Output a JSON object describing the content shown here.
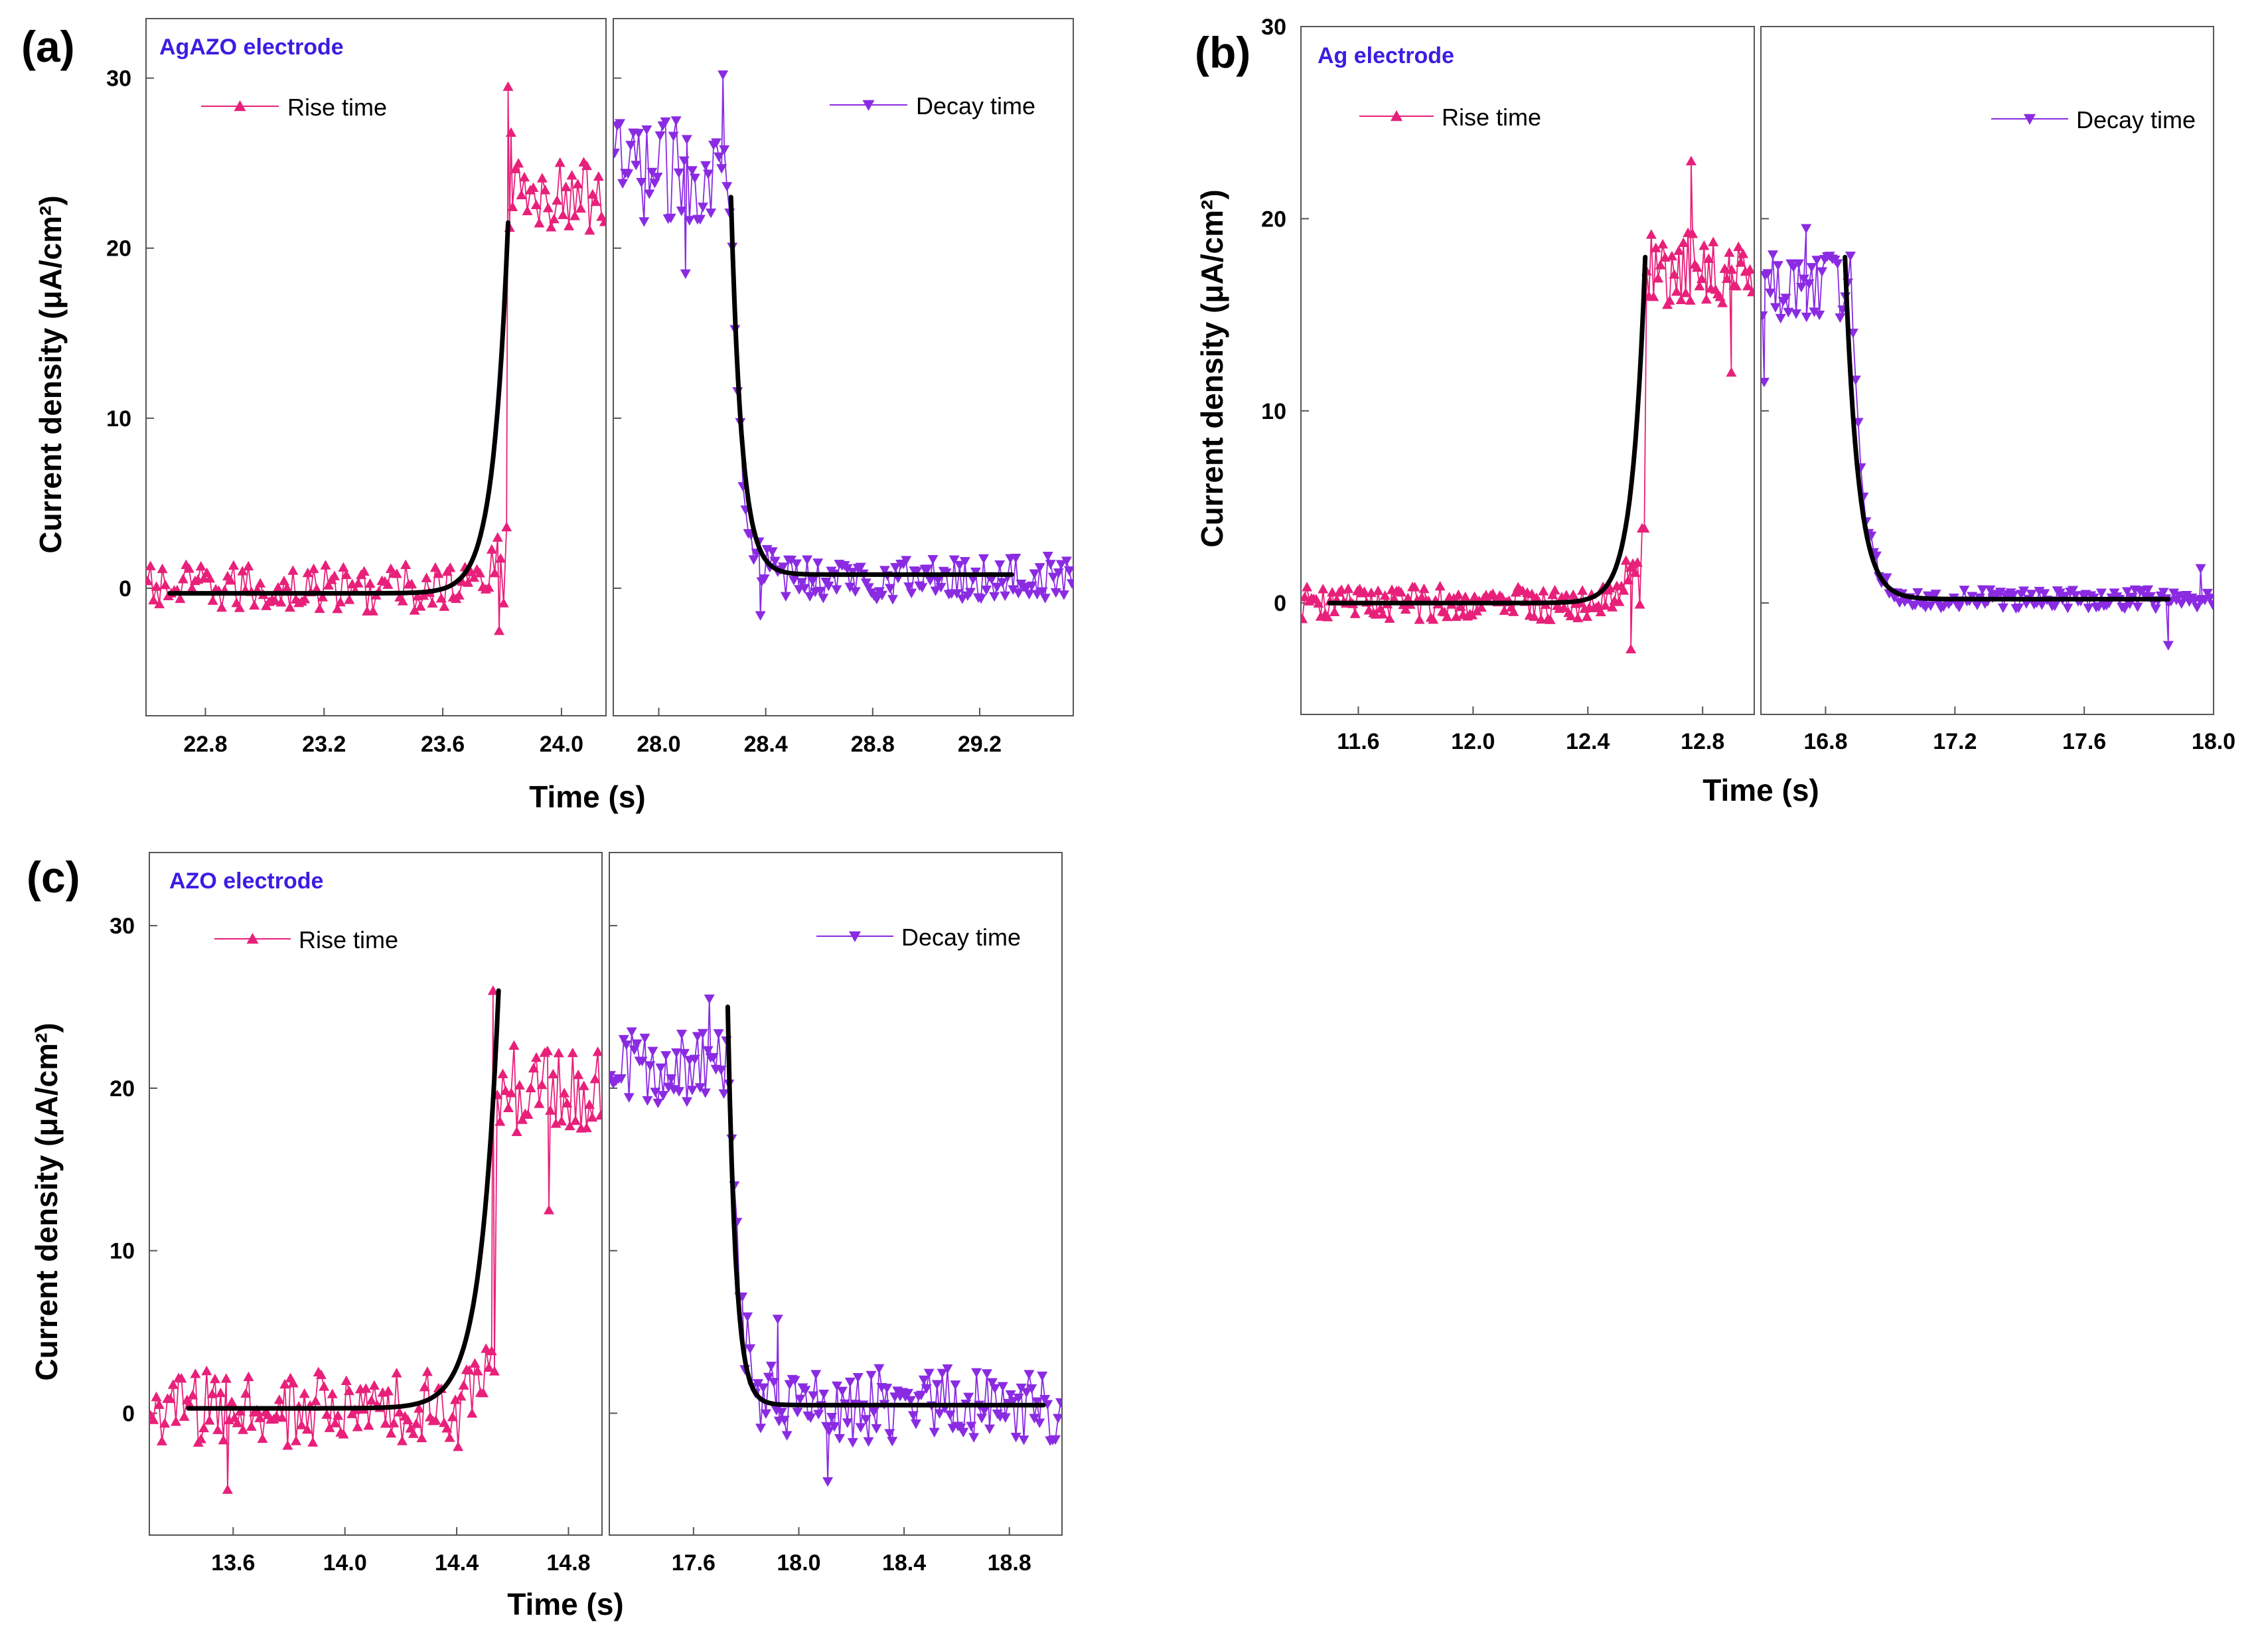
{
  "colors": {
    "rise": "#e8207a",
    "decay": "#8a2be2",
    "fit": "#000000",
    "electrode_text": "#3b1de0",
    "frame": "#555555"
  },
  "chart_data": [
    {
      "type": "line",
      "panel_label": "(a)",
      "title": "AgAZO electrode",
      "xlabel": "Time (s)",
      "ylabel": "Current density (μA/cm²)",
      "ylim": [
        -7.5,
        33.5
      ],
      "yticks": [
        "0",
        "10",
        "20",
        "30"
      ],
      "ytick_values": [
        0,
        10,
        20,
        30
      ],
      "left": {
        "xlim": [
          22.6,
          24.15
        ],
        "xticks": [
          "22.8",
          "23.2",
          "23.6",
          "24.0"
        ],
        "xtick_values": [
          22.8,
          23.2,
          23.6,
          24.0
        ],
        "series": {
          "name": "Rise time",
          "step_s": 0.01,
          "step_time": 23.82,
          "base": 0.0,
          "noise_before": 1.4,
          "plateau": 23.0,
          "noise_after": 2.2,
          "spikes": [
            [
              23.82,
              29.5
            ],
            [
              23.83,
              26.8
            ],
            [
              23.79,
              -2.5
            ]
          ]
        },
        "fit": {
          "t_start": 22.68,
          "t_end": 23.82,
          "base": -0.3,
          "peak": 21.5,
          "tau": 0.05,
          "kind": "rise"
        }
      },
      "right": {
        "xlim": [
          27.83,
          29.55
        ],
        "xticks": [
          "28.0",
          "28.4",
          "28.8",
          "29.2"
        ],
        "xtick_values": [
          28.0,
          28.4,
          28.8,
          29.2
        ],
        "series": {
          "name": "Decay time",
          "step_s": 0.01,
          "step_time": 28.27,
          "plateau": 24.5,
          "noise_before": 3.0,
          "base": 0.6,
          "noise_after": 1.3,
          "spikes": [
            [
              28.24,
              30.2
            ],
            [
              28.1,
              18.5
            ],
            [
              28.38,
              -1.6
            ]
          ]
        },
        "fit": {
          "t_start": 28.27,
          "t_end": 29.32,
          "base": 0.8,
          "peak": 23.0,
          "tau": 0.04,
          "kind": "decay"
        }
      },
      "legend_rise": "Rise time",
      "legend_decay": "Decay time"
    },
    {
      "type": "line",
      "panel_label": "(b)",
      "title": "Ag electrode",
      "xlabel": "Time (s)",
      "ylabel": "Current density (μA/cm²)",
      "ylim": [
        -5.8,
        30.0
      ],
      "yticks": [
        "0",
        "10",
        "20",
        "30"
      ],
      "ytick_values": [
        0,
        10,
        20,
        30
      ],
      "left": {
        "xlim": [
          11.4,
          12.98
        ],
        "xticks": [
          "11.6",
          "12.0",
          "12.4",
          "12.8"
        ],
        "xtick_values": [
          11.6,
          12.0,
          12.4,
          12.8
        ],
        "series": {
          "name": "Rise time",
          "step_s": 0.008,
          "step_time": 12.6,
          "base": 0.0,
          "noise_before": 0.9,
          "plateau": 17.5,
          "noise_after": 2.0,
          "spikes": [
            [
              12.76,
              23.0
            ],
            [
              12.9,
              12.0
            ],
            [
              12.55,
              -2.4
            ]
          ]
        },
        "fit": {
          "t_start": 11.5,
          "t_end": 12.6,
          "base": 0.0,
          "peak": 18.0,
          "tau": 0.045,
          "kind": "rise"
        }
      },
      "right": {
        "xlim": [
          16.6,
          18.0
        ],
        "xticks": [
          "16.8",
          "17.2",
          "17.6",
          "18.0"
        ],
        "xtick_values": [
          16.8,
          17.2,
          17.6,
          18.0
        ],
        "series": {
          "name": "Decay time",
          "step_s": 0.008,
          "step_time": 16.88,
          "plateau": 16.5,
          "noise_before": 1.8,
          "base": 0.2,
          "noise_after": 0.5,
          "spikes": [
            [
              16.74,
              19.5
            ],
            [
              16.61,
              11.5
            ],
            [
              17.86,
              -2.2
            ],
            [
              17.96,
              1.8
            ]
          ]
        },
        "fit": {
          "t_start": 16.86,
          "t_end": 17.86,
          "base": 0.2,
          "peak": 18.0,
          "tau": 0.04,
          "kind": "decay"
        }
      },
      "legend_rise": "Rise time",
      "legend_decay": "Decay time"
    },
    {
      "type": "line",
      "panel_label": "(c)",
      "title": "AZO electrode",
      "xlabel": "Time (s)",
      "ylabel": "Current density (μA/cm²)",
      "ylim": [
        -7.5,
        34.5
      ],
      "yticks": [
        "0",
        "10",
        "20",
        "30"
      ],
      "ytick_values": [
        0,
        10,
        20,
        30
      ],
      "left": {
        "xlim": [
          13.3,
          14.92
        ],
        "xticks": [
          "13.6",
          "14.0",
          "14.4",
          "14.8"
        ],
        "xtick_values": [
          13.6,
          14.0,
          14.4,
          14.8
        ],
        "series": {
          "name": "Rise time",
          "step_s": 0.01,
          "step_time": 14.54,
          "base": 0.2,
          "noise_before": 2.4,
          "plateau": 20.0,
          "noise_after": 2.8,
          "spikes": [
            [
              14.53,
              26.0
            ],
            [
              13.58,
              -4.7
            ],
            [
              14.73,
              12.5
            ]
          ]
        },
        "fit": {
          "t_start": 13.44,
          "t_end": 14.55,
          "base": 0.3,
          "peak": 26.0,
          "tau": 0.065,
          "kind": "rise"
        }
      },
      "right": {
        "xlim": [
          17.28,
          19.0
        ],
        "xticks": [
          "17.6",
          "18.0",
          "18.4",
          "18.8"
        ],
        "xtick_values": [
          17.6,
          18.0,
          18.4,
          18.8
        ],
        "series": {
          "name": "Decay time",
          "step_s": 0.01,
          "step_time": 17.74,
          "plateau": 21.0,
          "noise_before": 2.5,
          "base": 0.5,
          "noise_after": 2.3,
          "spikes": [
            [
              17.66,
              25.5
            ],
            [
              18.11,
              -4.2
            ],
            [
              17.92,
              5.8
            ]
          ]
        },
        "fit": {
          "t_start": 17.73,
          "t_end": 18.93,
          "base": 0.5,
          "peak": 25.0,
          "tau": 0.03,
          "kind": "decay"
        }
      },
      "legend_rise": "Rise time",
      "legend_decay": "Decay time"
    }
  ]
}
